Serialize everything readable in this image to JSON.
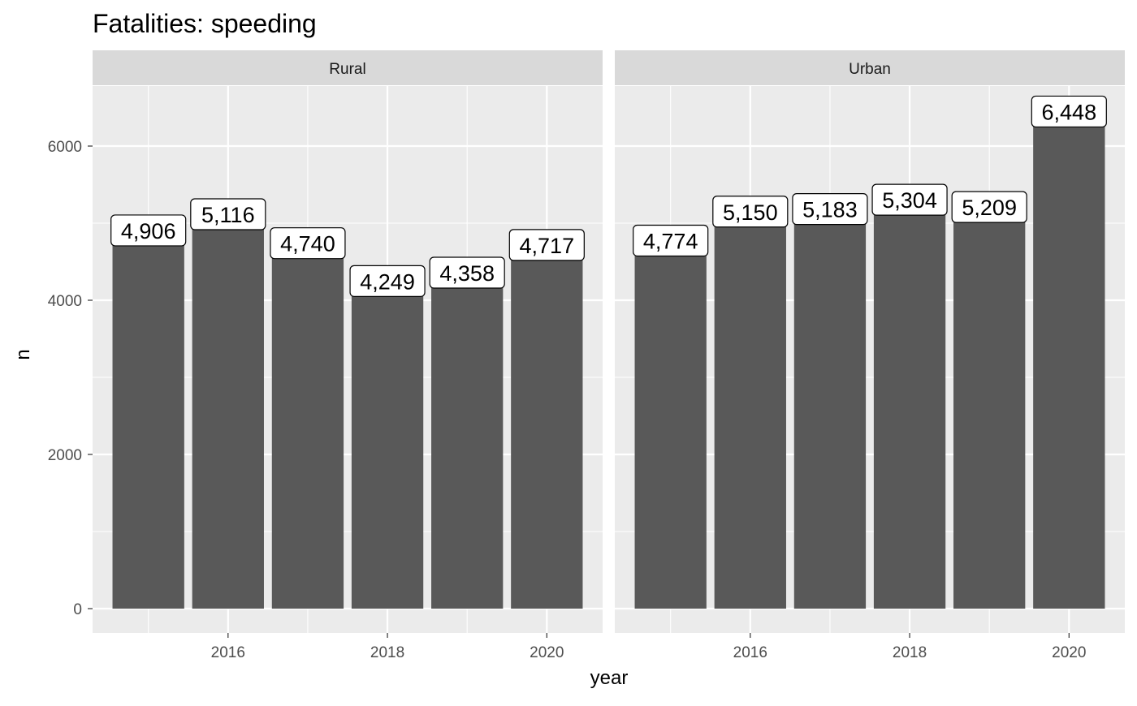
{
  "colors": {
    "panel_background": "#ebebeb",
    "strip_background": "#d9d9d9",
    "bar_fill": "#595959",
    "gridline": "#ffffff",
    "label_fill": "#ffffff"
  },
  "chart_data": {
    "type": "bar",
    "title": "Fatalities: speeding",
    "xlabel": "year",
    "ylabel": "n",
    "ylim": [
      0,
      6770
    ],
    "xlim": [
      2014.3,
      2020.7
    ],
    "y_ticks": [
      0,
      2000,
      4000,
      6000
    ],
    "y_tick_labels": [
      "0",
      "2000",
      "4000",
      "6000"
    ],
    "x_ticks": [
      2016,
      2018,
      2020
    ],
    "x_tick_labels": [
      "2016",
      "2018",
      "2020"
    ],
    "grid": true,
    "legend": "none",
    "facets": [
      {
        "name": "Rural",
        "x": [
          2015,
          2016,
          2017,
          2018,
          2019,
          2020
        ],
        "values": [
          4906,
          5116,
          4740,
          4249,
          4358,
          4717
        ],
        "labels": [
          "4,906",
          "5,116",
          "4,740",
          "4,249",
          "4,358",
          "4,717"
        ]
      },
      {
        "name": "Urban",
        "x": [
          2015,
          2016,
          2017,
          2018,
          2019,
          2020
        ],
        "values": [
          4774,
          5150,
          5183,
          5304,
          5209,
          6448
        ],
        "labels": [
          "4,774",
          "5,150",
          "5,183",
          "5,304",
          "5,209",
          "6,448"
        ]
      }
    ]
  }
}
